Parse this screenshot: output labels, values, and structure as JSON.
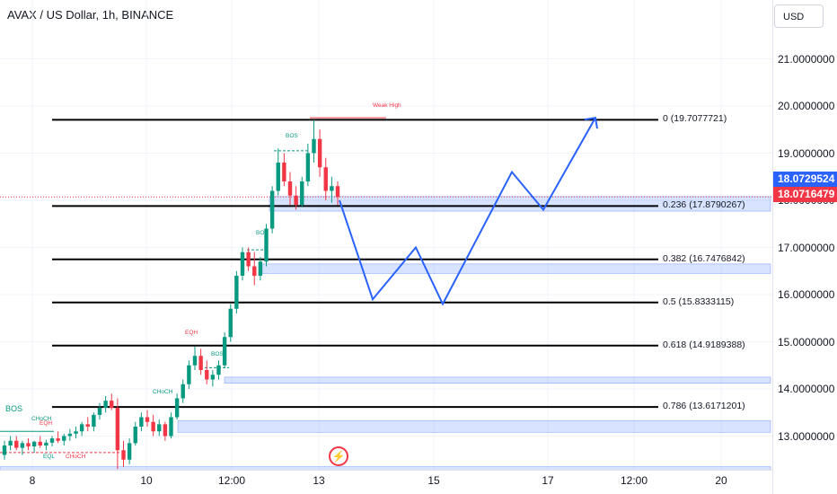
{
  "header": {
    "title": "AVAX / US Dollar, 1h, BINANCE"
  },
  "price_axis": {
    "currency": "USD",
    "ticks": [
      "21.0000000",
      "20.0000000",
      "19.0000000",
      "18.0000000",
      "17.0000000",
      "16.0000000",
      "15.0000000",
      "14.0000000",
      "13.0000000"
    ],
    "tags": [
      {
        "value": "18.0729524",
        "color": "#2962ff"
      },
      {
        "value": "18.0716479",
        "color": "#f23645"
      }
    ]
  },
  "time_axis": {
    "ticks": [
      "8",
      "10",
      "12:00",
      "13",
      "15",
      "17",
      "12:00",
      "20"
    ]
  },
  "colors": {
    "up": "#089981",
    "down": "#f23645",
    "projection": "#2962ff",
    "fib_line": "#000000",
    "zone": "#2962ff",
    "dashed_last": "#f23645"
  },
  "chart_data": {
    "type": "candlestick",
    "symbol": "AVAX / US Dollar",
    "interval": "1h",
    "exchange": "BINANCE",
    "ylim": [
      12.2,
      22.0
    ],
    "fibonacci": [
      {
        "level": "0",
        "price": 19.7077721,
        "label": "0 (19.7077721)"
      },
      {
        "level": "0.236",
        "price": 17.8790267,
        "label": "0.236 (17.8790267)"
      },
      {
        "level": "0.382",
        "price": 16.7476842,
        "label": "0.382 (16.7476842)"
      },
      {
        "level": "0.5",
        "price": 15.8333115,
        "label": "0.5 (15.8333115)"
      },
      {
        "level": "0.618",
        "price": 14.9189388,
        "label": "0.618 (14.9189388)"
      },
      {
        "level": "0.786",
        "price": 13.6171201,
        "label": "0.786 (13.6171201)"
      }
    ],
    "last_price": 18.0716479,
    "demand_zones": [
      {
        "top": 18.08,
        "bottom": 17.77
      },
      {
        "top": 16.65,
        "bottom": 16.45
      },
      {
        "top": 14.25,
        "bottom": 14.12
      },
      {
        "top": 13.33,
        "bottom": 13.08
      },
      {
        "top": 12.35,
        "bottom": 12.22
      }
    ],
    "projection_path": [
      {
        "x": "13 +3h",
        "y": 18.0
      },
      {
        "x": "14",
        "y": 15.9
      },
      {
        "x": "14 +12h",
        "y": 17.0
      },
      {
        "x": "15",
        "y": 15.8
      },
      {
        "x": "16",
        "y": 18.6
      },
      {
        "x": "17",
        "y": 17.8
      },
      {
        "x": "18",
        "y": 19.75
      }
    ],
    "annotations": [
      "Weak High",
      "BOS",
      "BOS",
      "BOS",
      "BOS",
      "EQH",
      "CHoCH",
      "CHoCH",
      "EQH",
      "EQL",
      "CHoCH"
    ],
    "candles_ohlc": [
      [
        12.6,
        12.9,
        12.5,
        12.8
      ],
      [
        12.8,
        13.0,
        12.7,
        12.9
      ],
      [
        12.9,
        13.0,
        12.7,
        12.75
      ],
      [
        12.75,
        12.9,
        12.6,
        12.85
      ],
      [
        12.85,
        12.95,
        12.7,
        12.78
      ],
      [
        12.78,
        12.9,
        12.65,
        12.88
      ],
      [
        12.88,
        13.0,
        12.75,
        12.8
      ],
      [
        12.8,
        12.92,
        12.7,
        12.86
      ],
      [
        12.86,
        13.0,
        12.78,
        12.95
      ],
      [
        12.95,
        13.1,
        12.85,
        12.9
      ],
      [
        12.9,
        13.05,
        12.8,
        13.0
      ],
      [
        13.0,
        13.15,
        12.9,
        13.05
      ],
      [
        13.05,
        13.2,
        12.95,
        13.1
      ],
      [
        13.1,
        13.3,
        13.0,
        13.25
      ],
      [
        13.25,
        13.4,
        13.1,
        13.2
      ],
      [
        13.2,
        13.5,
        13.1,
        13.45
      ],
      [
        13.45,
        13.7,
        13.35,
        13.6
      ],
      [
        13.6,
        13.85,
        13.5,
        13.75
      ],
      [
        13.75,
        13.9,
        13.55,
        13.6
      ],
      [
        13.6,
        13.8,
        12.3,
        12.7
      ],
      [
        12.7,
        12.9,
        12.35,
        12.5
      ],
      [
        12.5,
        12.95,
        12.4,
        12.85
      ],
      [
        12.85,
        13.3,
        12.8,
        13.2
      ],
      [
        13.2,
        13.5,
        13.1,
        13.4
      ],
      [
        13.4,
        13.55,
        13.2,
        13.3
      ],
      [
        13.3,
        13.45,
        13.0,
        13.1
      ],
      [
        13.1,
        13.35,
        13.0,
        13.25
      ],
      [
        13.25,
        13.3,
        12.9,
        13.0
      ],
      [
        13.0,
        13.5,
        12.95,
        13.4
      ],
      [
        13.4,
        13.9,
        13.35,
        13.8
      ],
      [
        13.8,
        14.2,
        13.7,
        14.1
      ],
      [
        14.1,
        14.6,
        14.0,
        14.5
      ],
      [
        14.5,
        14.9,
        14.4,
        14.7
      ],
      [
        14.7,
        14.85,
        14.3,
        14.4
      ],
      [
        14.4,
        14.6,
        14.1,
        14.2
      ],
      [
        14.2,
        14.4,
        14.05,
        14.3
      ],
      [
        14.3,
        14.6,
        14.2,
        14.5
      ],
      [
        14.5,
        15.2,
        14.45,
        15.1
      ],
      [
        15.1,
        15.8,
        15.0,
        15.7
      ],
      [
        15.7,
        16.5,
        15.6,
        16.4
      ],
      [
        16.4,
        17.0,
        16.3,
        16.9
      ],
      [
        16.9,
        17.0,
        16.5,
        16.6
      ],
      [
        16.6,
        16.9,
        16.2,
        16.4
      ],
      [
        16.4,
        16.8,
        16.3,
        16.7
      ],
      [
        16.7,
        17.5,
        16.6,
        17.4
      ],
      [
        17.4,
        18.3,
        17.3,
        18.2
      ],
      [
        18.2,
        19.1,
        18.1,
        18.8
      ],
      [
        18.8,
        19.0,
        18.3,
        18.4
      ],
      [
        18.4,
        18.6,
        17.9,
        18.1
      ],
      [
        18.1,
        18.3,
        17.8,
        17.9
      ],
      [
        17.9,
        18.5,
        17.85,
        18.4
      ],
      [
        18.4,
        19.2,
        18.3,
        19.0
      ],
      [
        19.0,
        19.7,
        18.8,
        19.3
      ],
      [
        19.3,
        19.5,
        18.5,
        18.7
      ],
      [
        18.7,
        18.9,
        18.0,
        18.2
      ],
      [
        18.2,
        18.5,
        17.95,
        18.3
      ],
      [
        18.3,
        18.4,
        17.9,
        18.07
      ]
    ]
  }
}
